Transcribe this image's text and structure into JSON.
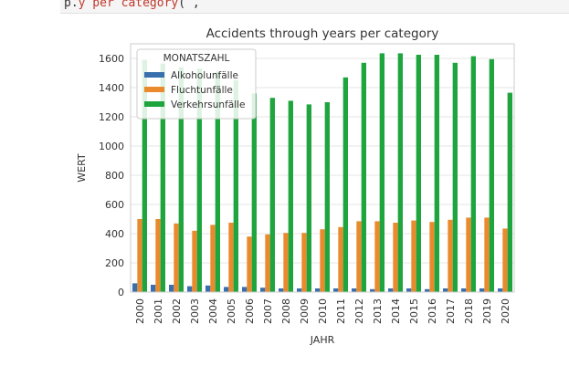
{
  "page": {
    "code_snippet": {
      "prefix": "p",
      "mid": ".",
      "red": "y per category",
      "suffix": "( , "
    }
  },
  "chart_data": {
    "type": "bar",
    "title": "Accidents through years per category",
    "xlabel": "JAHR",
    "ylabel": "WERT",
    "ylim": [
      0,
      1700
    ],
    "yticks": [
      0,
      200,
      400,
      600,
      800,
      1000,
      1200,
      1400,
      1600
    ],
    "grid": true,
    "legend": {
      "title": "MONATSZAHL",
      "position": "top-left"
    },
    "categories": [
      "2000",
      "2001",
      "2002",
      "2003",
      "2004",
      "2005",
      "2006",
      "2007",
      "2008",
      "2009",
      "2010",
      "2011",
      "2012",
      "2013",
      "2014",
      "2015",
      "2016",
      "2017",
      "2018",
      "2019",
      "2020"
    ],
    "series": [
      {
        "name": "Alkoholunfälle",
        "color": "#3a6fad",
        "values": [
          60,
          50,
          50,
          40,
          45,
          35,
          35,
          30,
          25,
          25,
          25,
          25,
          25,
          20,
          25,
          25,
          20,
          25,
          25,
          25,
          25
        ]
      },
      {
        "name": "Fluchtunfälle",
        "color": "#e98a2d",
        "values": [
          500,
          500,
          470,
          420,
          460,
          475,
          380,
          395,
          405,
          405,
          430,
          445,
          485,
          485,
          475,
          490,
          480,
          495,
          510,
          510,
          435
        ]
      },
      {
        "name": "Verkehrsunfälle",
        "color": "#1fa53d",
        "values": [
          1590,
          1565,
          1540,
          1530,
          1510,
          1450,
          1360,
          1330,
          1310,
          1285,
          1300,
          1470,
          1570,
          1635,
          1635,
          1625,
          1625,
          1570,
          1615,
          1595,
          1365
        ]
      }
    ]
  }
}
